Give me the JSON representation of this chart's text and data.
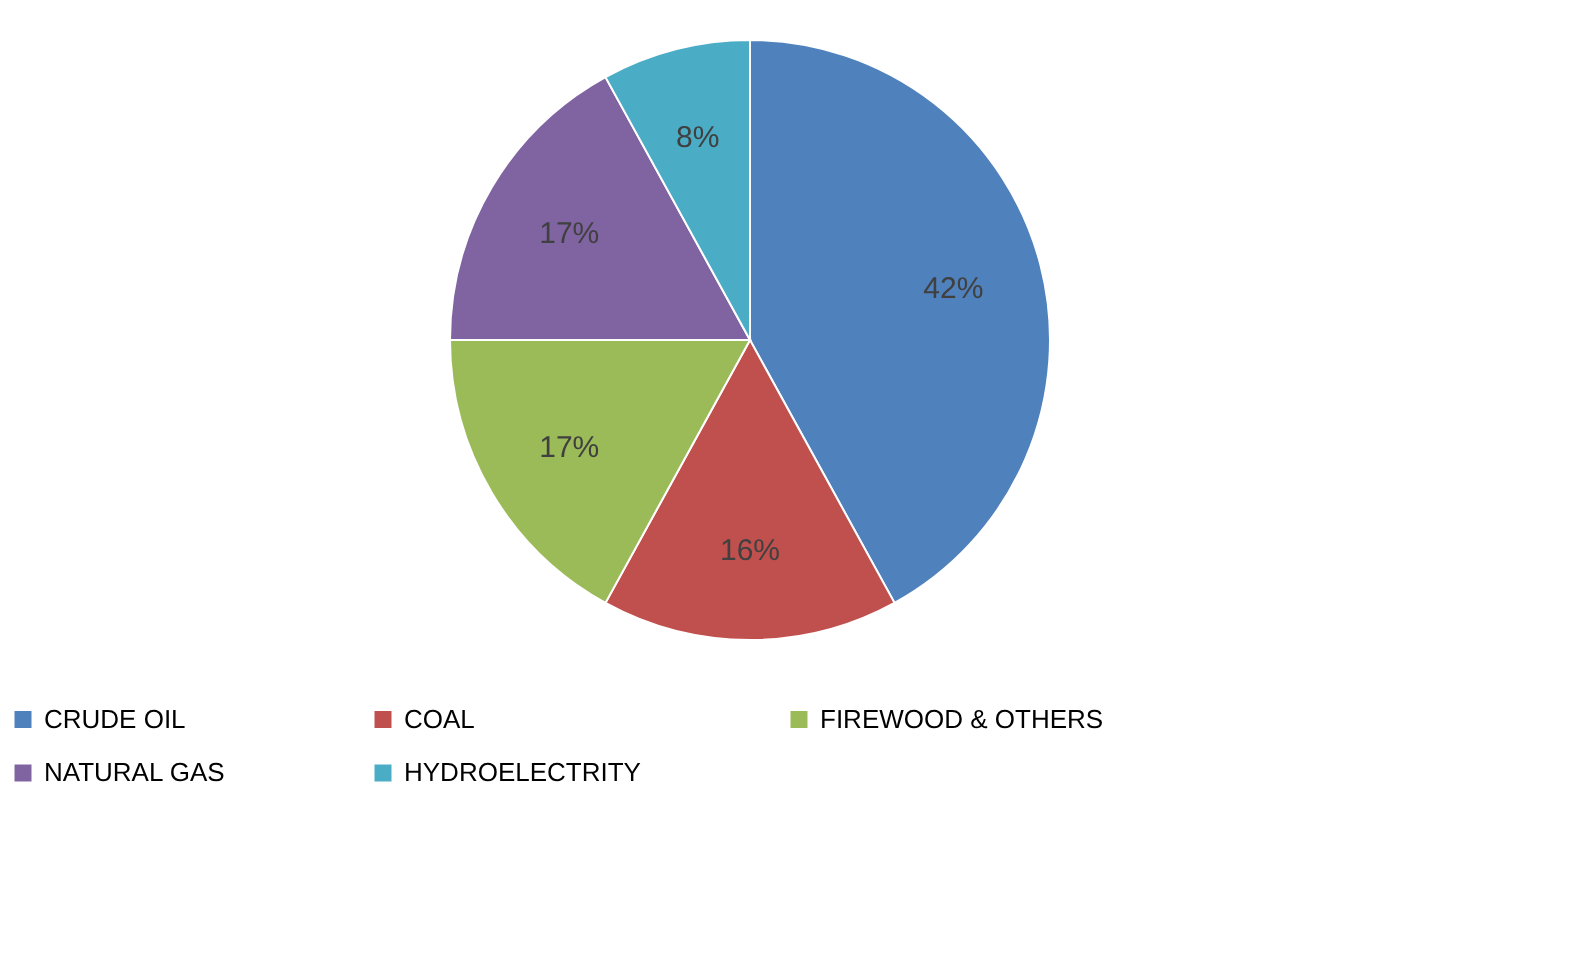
{
  "chart_data": {
    "type": "pie",
    "categories": [
      "CRUDE OIL",
      "COAL",
      "FIREWOOD & OTHERS",
      "NATURAL GAS",
      "HYDROELECTRITY"
    ],
    "values": [
      42,
      16,
      17,
      17,
      8
    ],
    "colors": [
      "#4f81bd",
      "#c0504d",
      "#9bbb59",
      "#8064a2",
      "#4bacc6"
    ],
    "value_labels": [
      "42%",
      "16%",
      "17%",
      "17%",
      "8%"
    ],
    "legend": "bottom"
  }
}
